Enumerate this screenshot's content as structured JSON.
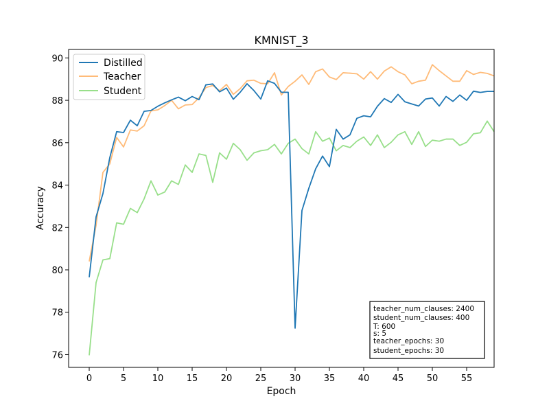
{
  "chart_data": {
    "type": "line",
    "title": "KMNIST_3",
    "xlabel": "Epoch",
    "ylabel": "Accuracy",
    "xlim": [
      -3,
      59
    ],
    "ylim": [
      75.4,
      90.4
    ],
    "xticks": [
      0,
      5,
      10,
      15,
      20,
      25,
      30,
      35,
      40,
      45,
      50,
      55
    ],
    "yticks": [
      76,
      78,
      80,
      82,
      84,
      86,
      88,
      90
    ],
    "legend_position": "top-left",
    "x": [
      0,
      1,
      2,
      3,
      4,
      5,
      6,
      7,
      8,
      9,
      10,
      11,
      12,
      13,
      14,
      15,
      16,
      17,
      18,
      19,
      20,
      21,
      22,
      23,
      24,
      25,
      26,
      27,
      28,
      29,
      30,
      31,
      32,
      33,
      34,
      35,
      36,
      37,
      38,
      39,
      40,
      41,
      42,
      43,
      44,
      45,
      46,
      47,
      48,
      49,
      50,
      51,
      52,
      53,
      54,
      55,
      56,
      57,
      58,
      59
    ],
    "series": [
      {
        "name": "Distilled",
        "color": "#1f77b4",
        "values": [
          79.65,
          82.5,
          83.6,
          85.3,
          86.52,
          86.48,
          87.06,
          86.8,
          87.48,
          87.52,
          87.72,
          87.88,
          88.02,
          88.15,
          87.98,
          88.18,
          88.03,
          88.73,
          88.77,
          88.4,
          88.58,
          88.05,
          88.38,
          88.78,
          88.46,
          88.06,
          88.92,
          88.8,
          88.38,
          88.38,
          77.25,
          82.8,
          83.85,
          84.77,
          85.37,
          84.87,
          86.63,
          86.17,
          86.37,
          87.15,
          87.27,
          87.22,
          87.72,
          88.08,
          87.9,
          88.28,
          87.93,
          87.83,
          87.73,
          88.06,
          88.11,
          87.73,
          88.18,
          87.95,
          88.25,
          88.0,
          88.43,
          88.37,
          88.42,
          88.42
        ]
      },
      {
        "name": "Teacher",
        "color": "#ffbb78",
        "values": [
          80.4,
          82.1,
          84.6,
          85.0,
          86.25,
          85.8,
          86.6,
          86.55,
          86.8,
          87.5,
          87.55,
          87.75,
          88.0,
          87.6,
          87.78,
          87.8,
          88.12,
          88.6,
          88.7,
          88.45,
          88.75,
          88.28,
          88.55,
          88.92,
          88.95,
          88.8,
          88.78,
          89.3,
          88.25,
          88.65,
          88.9,
          89.2,
          88.75,
          89.35,
          89.48,
          89.1,
          88.98,
          89.3,
          89.28,
          89.25,
          89.0,
          89.35,
          89.0,
          89.38,
          89.58,
          89.35,
          89.2,
          88.78,
          88.9,
          88.95,
          89.68,
          89.4,
          89.15,
          88.9,
          88.9,
          89.4,
          89.22,
          89.32,
          89.27,
          89.15
        ]
      },
      {
        "name": "Student",
        "color": "#98df8a",
        "values": [
          75.97,
          79.4,
          80.47,
          80.53,
          82.22,
          82.15,
          82.9,
          82.7,
          83.35,
          84.2,
          83.53,
          83.67,
          84.2,
          84.03,
          84.95,
          84.6,
          85.47,
          85.4,
          84.13,
          85.52,
          85.22,
          85.97,
          85.67,
          85.17,
          85.52,
          85.62,
          85.67,
          85.92,
          85.47,
          85.97,
          86.17,
          85.72,
          85.47,
          86.52,
          86.07,
          86.22,
          85.62,
          85.87,
          85.77,
          86.07,
          86.27,
          85.87,
          86.37,
          85.77,
          86.02,
          86.37,
          86.52,
          85.92,
          86.52,
          85.82,
          86.12,
          86.07,
          86.17,
          86.17,
          85.87,
          86.02,
          86.42,
          86.47,
          87.02,
          86.52
        ]
      }
    ],
    "info_box": [
      "teacher_num_clauses: 2400",
      "student_num_clauses: 400",
      "T: 600",
      "s: 5",
      "teacher_epochs: 30",
      "student_epochs: 30"
    ]
  }
}
